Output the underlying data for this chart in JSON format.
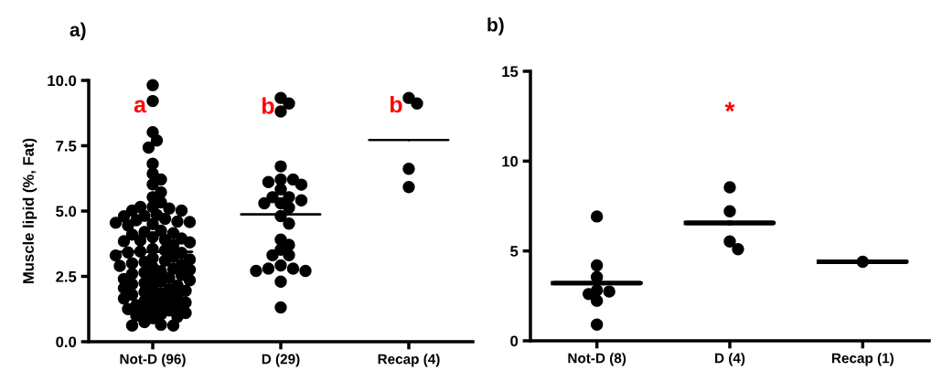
{
  "chart_data": [
    {
      "type": "scatter",
      "title": "a)",
      "ylabel": "Muscle lipid (%, Fat)",
      "categories": [
        "Not-D (96)",
        "D (29)",
        "Recap (4)"
      ],
      "ylim": [
        0,
        10
      ],
      "yticks": [
        {
          "value": 0,
          "label": "0.0"
        },
        {
          "value": 2.5,
          "label": "2.5"
        },
        {
          "value": 5,
          "label": "5.0"
        },
        {
          "value": 7.5,
          "label": "7.5"
        },
        {
          "value": 10,
          "label": "10.0"
        }
      ],
      "grid": false,
      "legend": false,
      "series": [
        {
          "marker": "circle",
          "color": "#000000",
          "x": [
            "Not-D (96)",
            "Not-D (96)",
            "Not-D (96)",
            "Not-D (96)",
            "Not-D (96)",
            "Not-D (96)",
            "Not-D (96)",
            "Not-D (96)",
            "Not-D (96)",
            "Not-D (96)",
            "Not-D (96)",
            "Not-D (96)",
            "Not-D (96)",
            "Not-D (96)",
            "Not-D (96)",
            "Not-D (96)",
            "Not-D (96)",
            "Not-D (96)",
            "Not-D (96)",
            "Not-D (96)",
            "Not-D (96)",
            "Not-D (96)",
            "Not-D (96)",
            "Not-D (96)",
            "Not-D (96)",
            "Not-D (96)",
            "Not-D (96)",
            "Not-D (96)",
            "Not-D (96)",
            "Not-D (96)",
            "Not-D (96)",
            "Not-D (96)",
            "Not-D (96)",
            "Not-D (96)",
            "Not-D (96)",
            "Not-D (96)",
            "Not-D (96)",
            "Not-D (96)",
            "Not-D (96)",
            "Not-D (96)",
            "Not-D (96)",
            "Not-D (96)",
            "Not-D (96)",
            "Not-D (96)",
            "Not-D (96)",
            "Not-D (96)",
            "Not-D (96)",
            "Not-D (96)",
            "Not-D (96)",
            "Not-D (96)",
            "Not-D (96)",
            "Not-D (96)",
            "Not-D (96)",
            "Not-D (96)",
            "Not-D (96)",
            "Not-D (96)",
            "Not-D (96)",
            "Not-D (96)",
            "Not-D (96)",
            "Not-D (96)",
            "Not-D (96)",
            "Not-D (96)",
            "Not-D (96)",
            "Not-D (96)",
            "Not-D (96)",
            "Not-D (96)",
            "Not-D (96)",
            "Not-D (96)",
            "Not-D (96)",
            "Not-D (96)",
            "Not-D (96)",
            "Not-D (96)",
            "Not-D (96)",
            "Not-D (96)",
            "Not-D (96)",
            "Not-D (96)",
            "Not-D (96)",
            "Not-D (96)",
            "Not-D (96)",
            "Not-D (96)",
            "Not-D (96)",
            "Not-D (96)",
            "Not-D (96)",
            "Not-D (96)",
            "Not-D (96)",
            "Not-D (96)",
            "Not-D (96)",
            "Not-D (96)",
            "Not-D (96)",
            "Not-D (96)",
            "Not-D (96)",
            "Not-D (96)",
            "Not-D (96)",
            "Not-D (96)",
            "Not-D (96)",
            "Not-D (96)"
          ],
          "values": [
            9.82,
            9.21,
            8.02,
            7.7,
            7.43,
            6.81,
            6.43,
            6.21,
            6.02,
            5.72,
            5.53,
            5.33,
            5.16,
            5.16,
            5.1,
            5.02,
            5.02,
            4.85,
            4.82,
            4.8,
            4.7,
            4.65,
            4.6,
            4.58,
            4.55,
            4.5,
            4.45,
            4.25,
            4.2,
            4.15,
            4.1,
            4.0,
            3.95,
            3.9,
            3.88,
            3.85,
            3.8,
            3.7,
            3.55,
            3.5,
            3.45,
            3.42,
            3.4,
            3.3,
            3.25,
            3.2,
            3.15,
            3.1,
            3.05,
            3.0,
            2.95,
            2.9,
            2.85,
            2.8,
            2.75,
            2.7,
            2.65,
            2.6,
            2.55,
            2.5,
            2.45,
            2.4,
            2.35,
            2.3,
            2.25,
            2.2,
            2.15,
            2.1,
            2.05,
            2.0,
            1.95,
            1.9,
            1.85,
            1.8,
            1.75,
            1.7,
            1.65,
            1.6,
            1.55,
            1.5,
            1.45,
            1.4,
            1.35,
            1.3,
            1.25,
            1.2,
            1.15,
            1.1,
            1.05,
            1.0,
            0.95,
            0.9,
            0.75,
            0.65,
            0.62,
            0.62
          ]
        },
        {
          "marker": "circle",
          "color": "#000000",
          "x": [
            "D (29)",
            "D (29)",
            "D (29)",
            "D (29)",
            "D (29)",
            "D (29)",
            "D (29)",
            "D (29)",
            "D (29)",
            "D (29)",
            "D (29)",
            "D (29)",
            "D (29)",
            "D (29)",
            "D (29)",
            "D (29)",
            "D (29)",
            "D (29)",
            "D (29)",
            "D (29)",
            "D (29)",
            "D (29)",
            "D (29)",
            "D (29)",
            "D (29)",
            "D (29)",
            "D (29)",
            "D (29)",
            "D (29)"
          ],
          "values": [
            9.33,
            9.12,
            8.81,
            6.71,
            6.21,
            6.21,
            6.11,
            6.01,
            5.83,
            5.53,
            5.53,
            5.41,
            5.3,
            5.3,
            5.13,
            4.81,
            4.52,
            3.91,
            3.71,
            3.52,
            3.31,
            3.31,
            2.92,
            2.8,
            2.8,
            2.71,
            2.71,
            2.3,
            1.31
          ]
        },
        {
          "marker": "circle",
          "color": "#000000",
          "x": [
            "Recap (4)",
            "Recap (4)",
            "Recap (4)",
            "Recap (4)"
          ],
          "values": [
            9.33,
            9.12,
            6.62,
            5.92
          ]
        },
        {
          "type": "box",
          "color": "#000000",
          "boxes": [
            {
              "low": 3.44,
              "q1": 3.44,
              "median": 3.44,
              "q3": 3.44,
              "high": 3.44
            },
            {
              "low": 4.87,
              "q1": 4.87,
              "median": 4.87,
              "q3": 4.87,
              "high": 4.87
            },
            {
              "low": 7.72,
              "q1": 7.72,
              "median": 7.72,
              "q3": 7.72,
              "high": 7.72
            }
          ]
        }
      ],
      "annotations": [
        "a",
        "b",
        "b"
      ]
    },
    {
      "type": "scatter",
      "title": "b)",
      "categories": [
        "Not-D (8)",
        "D (4)",
        "Recap (1)"
      ],
      "ylim": [
        0,
        15
      ],
      "yticks": [
        0,
        5,
        10,
        15
      ],
      "grid": false,
      "legend": false,
      "series": [
        {
          "marker": "circle",
          "color": "#000000",
          "x": [
            "Not-D (8)",
            "Not-D (8)",
            "Not-D (8)",
            "Not-D (8)",
            "Not-D (8)",
            "Not-D (8)",
            "Not-D (8)",
            "Not-D (8)"
          ],
          "values": [
            6.92,
            4.2,
            3.55,
            2.81,
            2.74,
            2.6,
            2.23,
            0.9
          ]
        },
        {
          "marker": "circle",
          "color": "#000000",
          "x": [
            "D (4)",
            "D (4)",
            "D (4)",
            "D (4)"
          ],
          "values": [
            8.54,
            7.21,
            5.53,
            5.1
          ]
        },
        {
          "marker": "circle",
          "color": "#000000",
          "x": [
            "Recap (1)"
          ],
          "values": [
            4.4
          ]
        },
        {
          "type": "box",
          "color": "#000000",
          "boxes": [
            {
              "low": 3.21,
              "q1": 3.21,
              "median": 3.21,
              "q3": 3.21,
              "high": 3.21
            },
            {
              "low": 6.56,
              "q1": 6.56,
              "median": 6.56,
              "q3": 6.56,
              "high": 6.56
            },
            {
              "low": 4.4,
              "q1": 4.4,
              "median": 4.4,
              "q3": 4.4,
              "high": 4.4
            }
          ]
        }
      ],
      "annotations": [
        "*"
      ]
    }
  ]
}
